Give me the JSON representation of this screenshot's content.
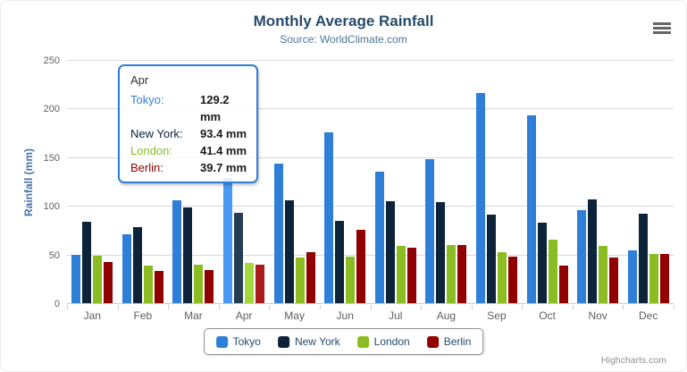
{
  "chart": {
    "title": "Monthly Average Rainfall",
    "subtitle": "Source: WorldClimate.com",
    "y_axis_title": "Rainfall (mm)",
    "credits": "Highcharts.com"
  },
  "icons": {
    "export_menu": "hamburger-icon"
  },
  "colors": {
    "title": "#274b6d",
    "subtitle": "#4d759a",
    "axis_labels": "#606060",
    "gridline": "#d8d8d8",
    "axis_line": "#c0d0e0",
    "y_axis_title": "#4572a7",
    "legend_border": "#909090",
    "credits": "#909090",
    "tooltip_border": "#2f7ed8"
  },
  "chart_data": {
    "type": "bar",
    "title": "Monthly Average Rainfall",
    "subtitle": "Source: WorldClimate.com",
    "xlabel": "",
    "ylabel": "Rainfall (mm)",
    "ylim": [
      0,
      250
    ],
    "y_ticks": [
      0,
      50,
      100,
      150,
      200,
      250
    ],
    "grid": true,
    "legend_position": "bottom",
    "hovered_category": "Apr",
    "categories": [
      "Jan",
      "Feb",
      "Mar",
      "Apr",
      "May",
      "Jun",
      "Jul",
      "Aug",
      "Sep",
      "Oct",
      "Nov",
      "Dec"
    ],
    "series": [
      {
        "name": "Tokyo",
        "color": "#2f7ed8",
        "hover_color": "#4998f2",
        "values": [
          49.9,
          71.5,
          106.4,
          129.2,
          144.0,
          176.0,
          135.6,
          148.5,
          216.4,
          194.1,
          95.6,
          54.4
        ]
      },
      {
        "name": "New York",
        "color": "#0d233a",
        "hover_color": "#273d54",
        "values": [
          83.6,
          78.8,
          98.5,
          93.4,
          106.0,
          84.5,
          105.0,
          104.3,
          91.2,
          83.5,
          106.6,
          92.3
        ]
      },
      {
        "name": "London",
        "color": "#8bbc21",
        "hover_color": "#a5d63b",
        "values": [
          48.9,
          38.8,
          39.3,
          41.4,
          47.0,
          48.3,
          59.0,
          59.6,
          52.4,
          65.2,
          59.3,
          51.2
        ]
      },
      {
        "name": "Berlin",
        "color": "#910000",
        "hover_color": "#ab1a1a",
        "values": [
          42.4,
          33.2,
          34.5,
          39.7,
          52.6,
          75.5,
          57.4,
          60.4,
          47.6,
          39.1,
          46.8,
          51.1
        ]
      }
    ]
  },
  "tooltip": {
    "header": "Apr",
    "rows": [
      {
        "name": "Tokyo:",
        "value": "129.2 mm",
        "color": "#2f7ed8"
      },
      {
        "name": "New York:",
        "value": "93.4 mm",
        "color": "#0d233a"
      },
      {
        "name": "London:",
        "value": "41.4 mm",
        "color": "#8bbc21"
      },
      {
        "name": "Berlin:",
        "value": "39.7 mm",
        "color": "#910000"
      }
    ]
  }
}
